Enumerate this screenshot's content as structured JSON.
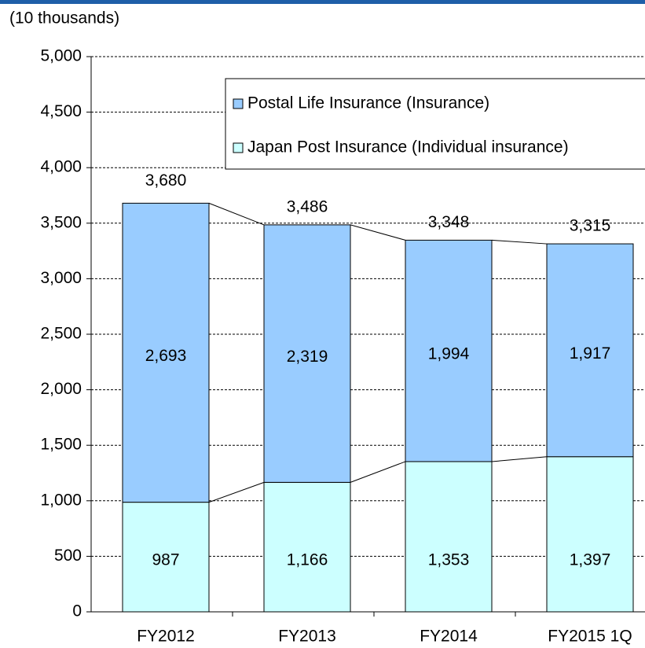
{
  "chart_data": {
    "type": "stacked_bar",
    "y_axis_label": "(10 thousands)",
    "categories": [
      "FY2012",
      "FY2013",
      "FY2014",
      "FY2015 1Q"
    ],
    "series": [
      {
        "name": "Postal Life Insurance (Insurance)",
        "color": "#99ccff",
        "values": [
          2693,
          2319,
          1994,
          1917
        ],
        "value_labels": [
          "2,693",
          "2,319",
          "1,994",
          "1,917"
        ]
      },
      {
        "name": "Japan Post Insurance (Individual insurance)",
        "color": "#ccffff",
        "values": [
          987,
          1166,
          1353,
          1397
        ],
        "value_labels": [
          "987",
          "1,166",
          "1,353",
          "1,397"
        ]
      }
    ],
    "totals": [
      3680,
      3486,
      3348,
      3315
    ],
    "total_labels": [
      "3,680",
      "3,486",
      "3,348",
      "3,315"
    ],
    "ylim": [
      0,
      5000
    ],
    "yticks": [
      0,
      {
        "value": 500,
        "label": "500"
      },
      {
        "value": 1000,
        "label": "1,000"
      },
      {
        "value": 1500,
        "label": "1,500"
      },
      {
        "value": 2000,
        "label": "2,000"
      },
      {
        "value": 2500,
        "label": "2,500"
      },
      {
        "value": 3000,
        "label": "3,000"
      },
      {
        "value": 3500,
        "label": "3,500"
      },
      {
        "value": 4000,
        "label": "4,000"
      },
      {
        "value": 4500,
        "label": "4,500"
      },
      {
        "value": 5000,
        "label": "5,000"
      }
    ],
    "grid": true,
    "legend": "top-right"
  }
}
